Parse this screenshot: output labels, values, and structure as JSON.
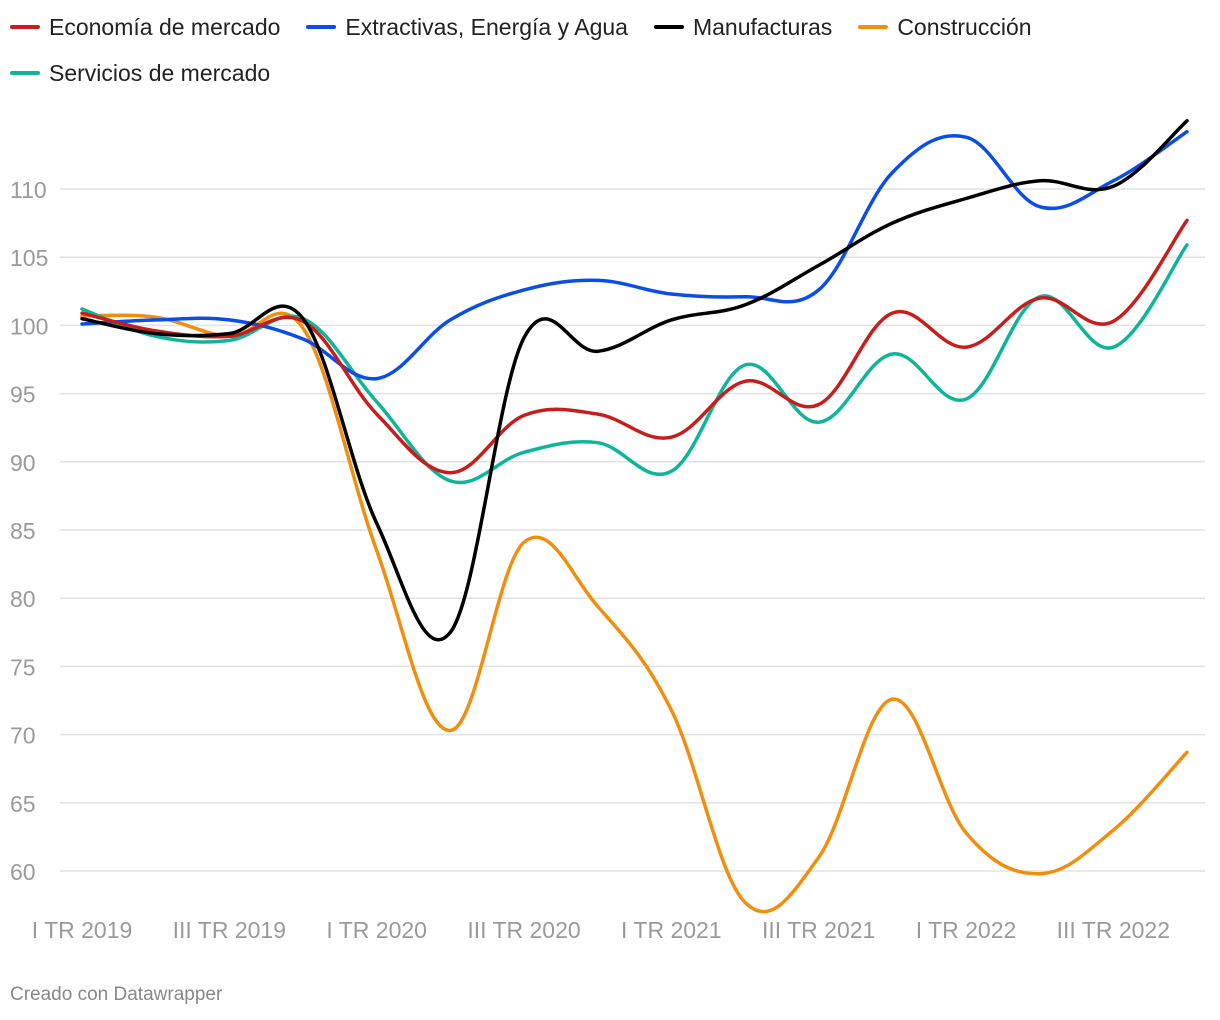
{
  "chart_data": {
    "type": "line",
    "title": "",
    "xlabel": "",
    "ylabel": "",
    "x": [
      "I TR 2019",
      "II TR 2019",
      "III TR 2019",
      "IV TR 2019",
      "I TR 2020",
      "II TR 2020",
      "III TR 2020",
      "IV TR 2020",
      "I TR 2021",
      "II TR 2021",
      "III TR 2021",
      "IV TR 2021",
      "I TR 2022",
      "II TR 2022",
      "III TR 2022",
      "IV TR 2022"
    ],
    "xticks": [
      "I TR 2019",
      "III TR 2019",
      "I TR 2020",
      "III TR 2020",
      "I TR 2021",
      "III TR 2021",
      "I TR 2022",
      "III TR 2022"
    ],
    "yticks": [
      60,
      65,
      70,
      75,
      80,
      85,
      90,
      95,
      100,
      105,
      110
    ],
    "ylim": [
      58,
      115
    ],
    "grid": true,
    "legend_position": "top-left",
    "series": [
      {
        "name": "Economía de mercado",
        "color": "#c71e1d",
        "values": [
          100.9,
          99.6,
          99.2,
          100.3,
          93.5,
          89.2,
          93.4,
          93.5,
          91.8,
          95.9,
          94.2,
          100.9,
          98.4,
          102.0,
          100.3,
          107.7
        ]
      },
      {
        "name": "Extractivas, Energía y Agua",
        "color": "#0b4de8",
        "values": [
          100.1,
          100.4,
          100.4,
          99.0,
          96.1,
          100.4,
          102.6,
          103.3,
          102.3,
          102.1,
          102.6,
          111.2,
          113.8,
          108.7,
          110.6,
          114.2
        ]
      },
      {
        "name": "Manufacturas",
        "color": "#000000",
        "values": [
          100.5,
          99.4,
          99.4,
          100.5,
          85.5,
          77.5,
          99.1,
          98.1,
          100.4,
          101.5,
          104.4,
          107.5,
          109.3,
          110.6,
          110.2,
          115.0
        ]
      },
      {
        "name": "Construcción",
        "color": "#f28e0e",
        "values": [
          100.7,
          100.6,
          99.2,
          99.8,
          83.5,
          70.3,
          84.1,
          79.4,
          71.8,
          57.7,
          61.0,
          72.6,
          62.8,
          59.8,
          63.0,
          68.7
        ]
      },
      {
        "name": "Servicios de mercado",
        "color": "#0fb59b",
        "values": [
          101.2,
          99.2,
          98.9,
          100.5,
          94.4,
          88.6,
          90.7,
          91.4,
          89.3,
          97.1,
          92.9,
          97.9,
          94.6,
          102.1,
          98.4,
          105.9
        ]
      }
    ]
  },
  "footer": {
    "credit": "Creado con Datawrapper"
  }
}
